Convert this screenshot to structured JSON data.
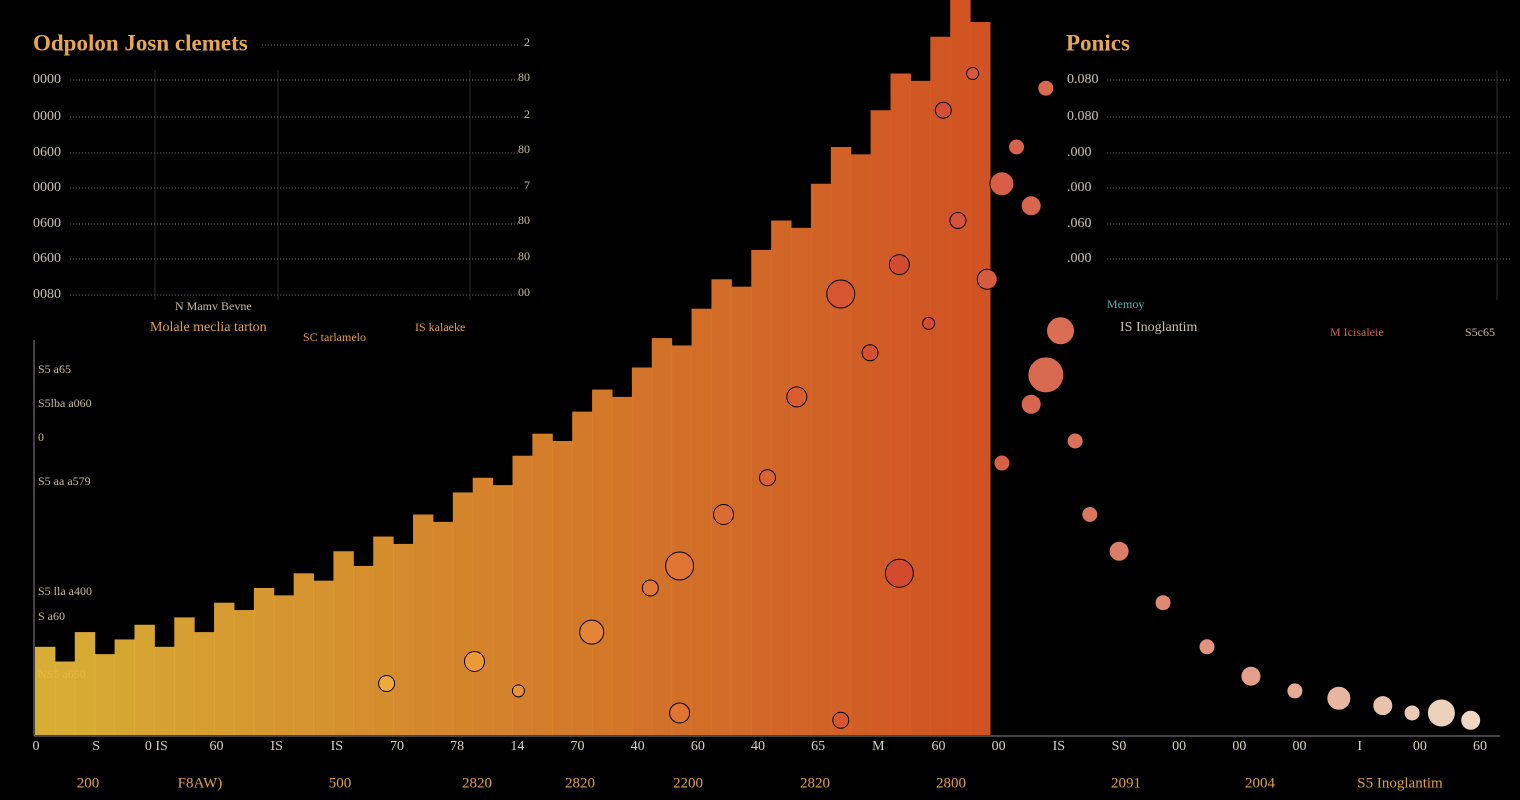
{
  "left_panel": {
    "title": "Odpolon Josn clemets",
    "left_labels": [
      "0000",
      "0000",
      "0600",
      "0000",
      "0600",
      "0600",
      "0080"
    ],
    "right_labels": [
      "2",
      "80",
      "2",
      "80",
      "7",
      "80",
      "80",
      "00"
    ],
    "legend": [
      "N Mamv Bevne",
      "Molale meclia tarton",
      "SC tarlamelo",
      "IS kalaeke"
    ]
  },
  "right_panel": {
    "title": "Ponics",
    "left_labels": [
      "0.080",
      "0.080",
      ".000",
      ".000",
      ".060",
      ".000"
    ],
    "legend": [
      "Memoy",
      "IS Inoglantim",
      "M Icisaleie",
      "S5c65"
    ]
  },
  "axis": {
    "y_labels": [
      "S5 a65",
      "S5lba a060",
      "0",
      "S5 aa a579",
      "S5 lla a400",
      "S a60",
      "NS5 a650"
    ],
    "x_labels": [
      "0",
      "S",
      "0 IS",
      "60",
      "IS",
      "IS",
      "70",
      "78",
      "14",
      "70",
      "40",
      "60",
      "40",
      "65",
      "M",
      "60",
      "00",
      "IS",
      "S0",
      "00",
      "00",
      "00",
      "I",
      "00",
      "60"
    ],
    "x_labels_2": [
      "200",
      "F8AW)",
      "500",
      "2820",
      "2820",
      "2200",
      "2820",
      "2800",
      "2091",
      "2004",
      "S5 Inoglantim"
    ]
  },
  "chart_data": [
    {
      "type": "bar",
      "values": [
        12,
        10,
        14,
        11,
        13,
        15,
        12,
        16,
        14,
        18,
        17,
        20,
        19,
        22,
        21,
        25,
        23,
        27,
        26,
        30,
        29,
        33,
        35,
        34,
        38,
        41,
        40,
        44,
        47,
        46,
        50,
        54,
        53,
        58,
        62,
        61,
        66,
        70,
        69,
        75,
        80,
        79,
        85,
        90,
        89,
        95,
        100,
        97
      ],
      "ylim": [
        0,
        100
      ],
      "color_scale": [
        "#e9bc38",
        "#e25a26"
      ]
    },
    {
      "type": "scatter",
      "x": [
        24,
        30,
        33,
        38,
        42,
        44,
        47,
        50,
        52,
        55,
        57,
        59,
        61,
        63,
        65,
        62,
        64,
        66,
        67,
        68,
        69,
        70,
        68,
        71,
        72,
        74,
        77,
        80,
        83,
        86,
        89,
        92,
        94,
        96,
        98,
        69,
        59,
        44,
        55,
        66
      ],
      "y": [
        7,
        10,
        6,
        14,
        20,
        23,
        30,
        35,
        46,
        60,
        52,
        64,
        56,
        70,
        62,
        85,
        90,
        75,
        80,
        72,
        88,
        55,
        45,
        40,
        30,
        25,
        18,
        12,
        8,
        6,
        5,
        4,
        3,
        3,
        2,
        49,
        22,
        3,
        2,
        37
      ],
      "sizes": [
        8,
        10,
        6,
        12,
        8,
        14,
        10,
        8,
        10,
        14,
        8,
        10,
        6,
        8,
        10,
        8,
        6,
        12,
        8,
        10,
        8,
        14,
        10,
        8,
        8,
        10,
        8,
        8,
        10,
        8,
        12,
        10,
        8,
        14,
        10,
        18,
        14,
        10,
        8,
        8
      ],
      "xlim": [
        0,
        100
      ],
      "ylim": [
        0,
        100
      ],
      "color_scale": [
        "#f2b53a",
        "#d2482e",
        "#efe0cc"
      ]
    }
  ]
}
